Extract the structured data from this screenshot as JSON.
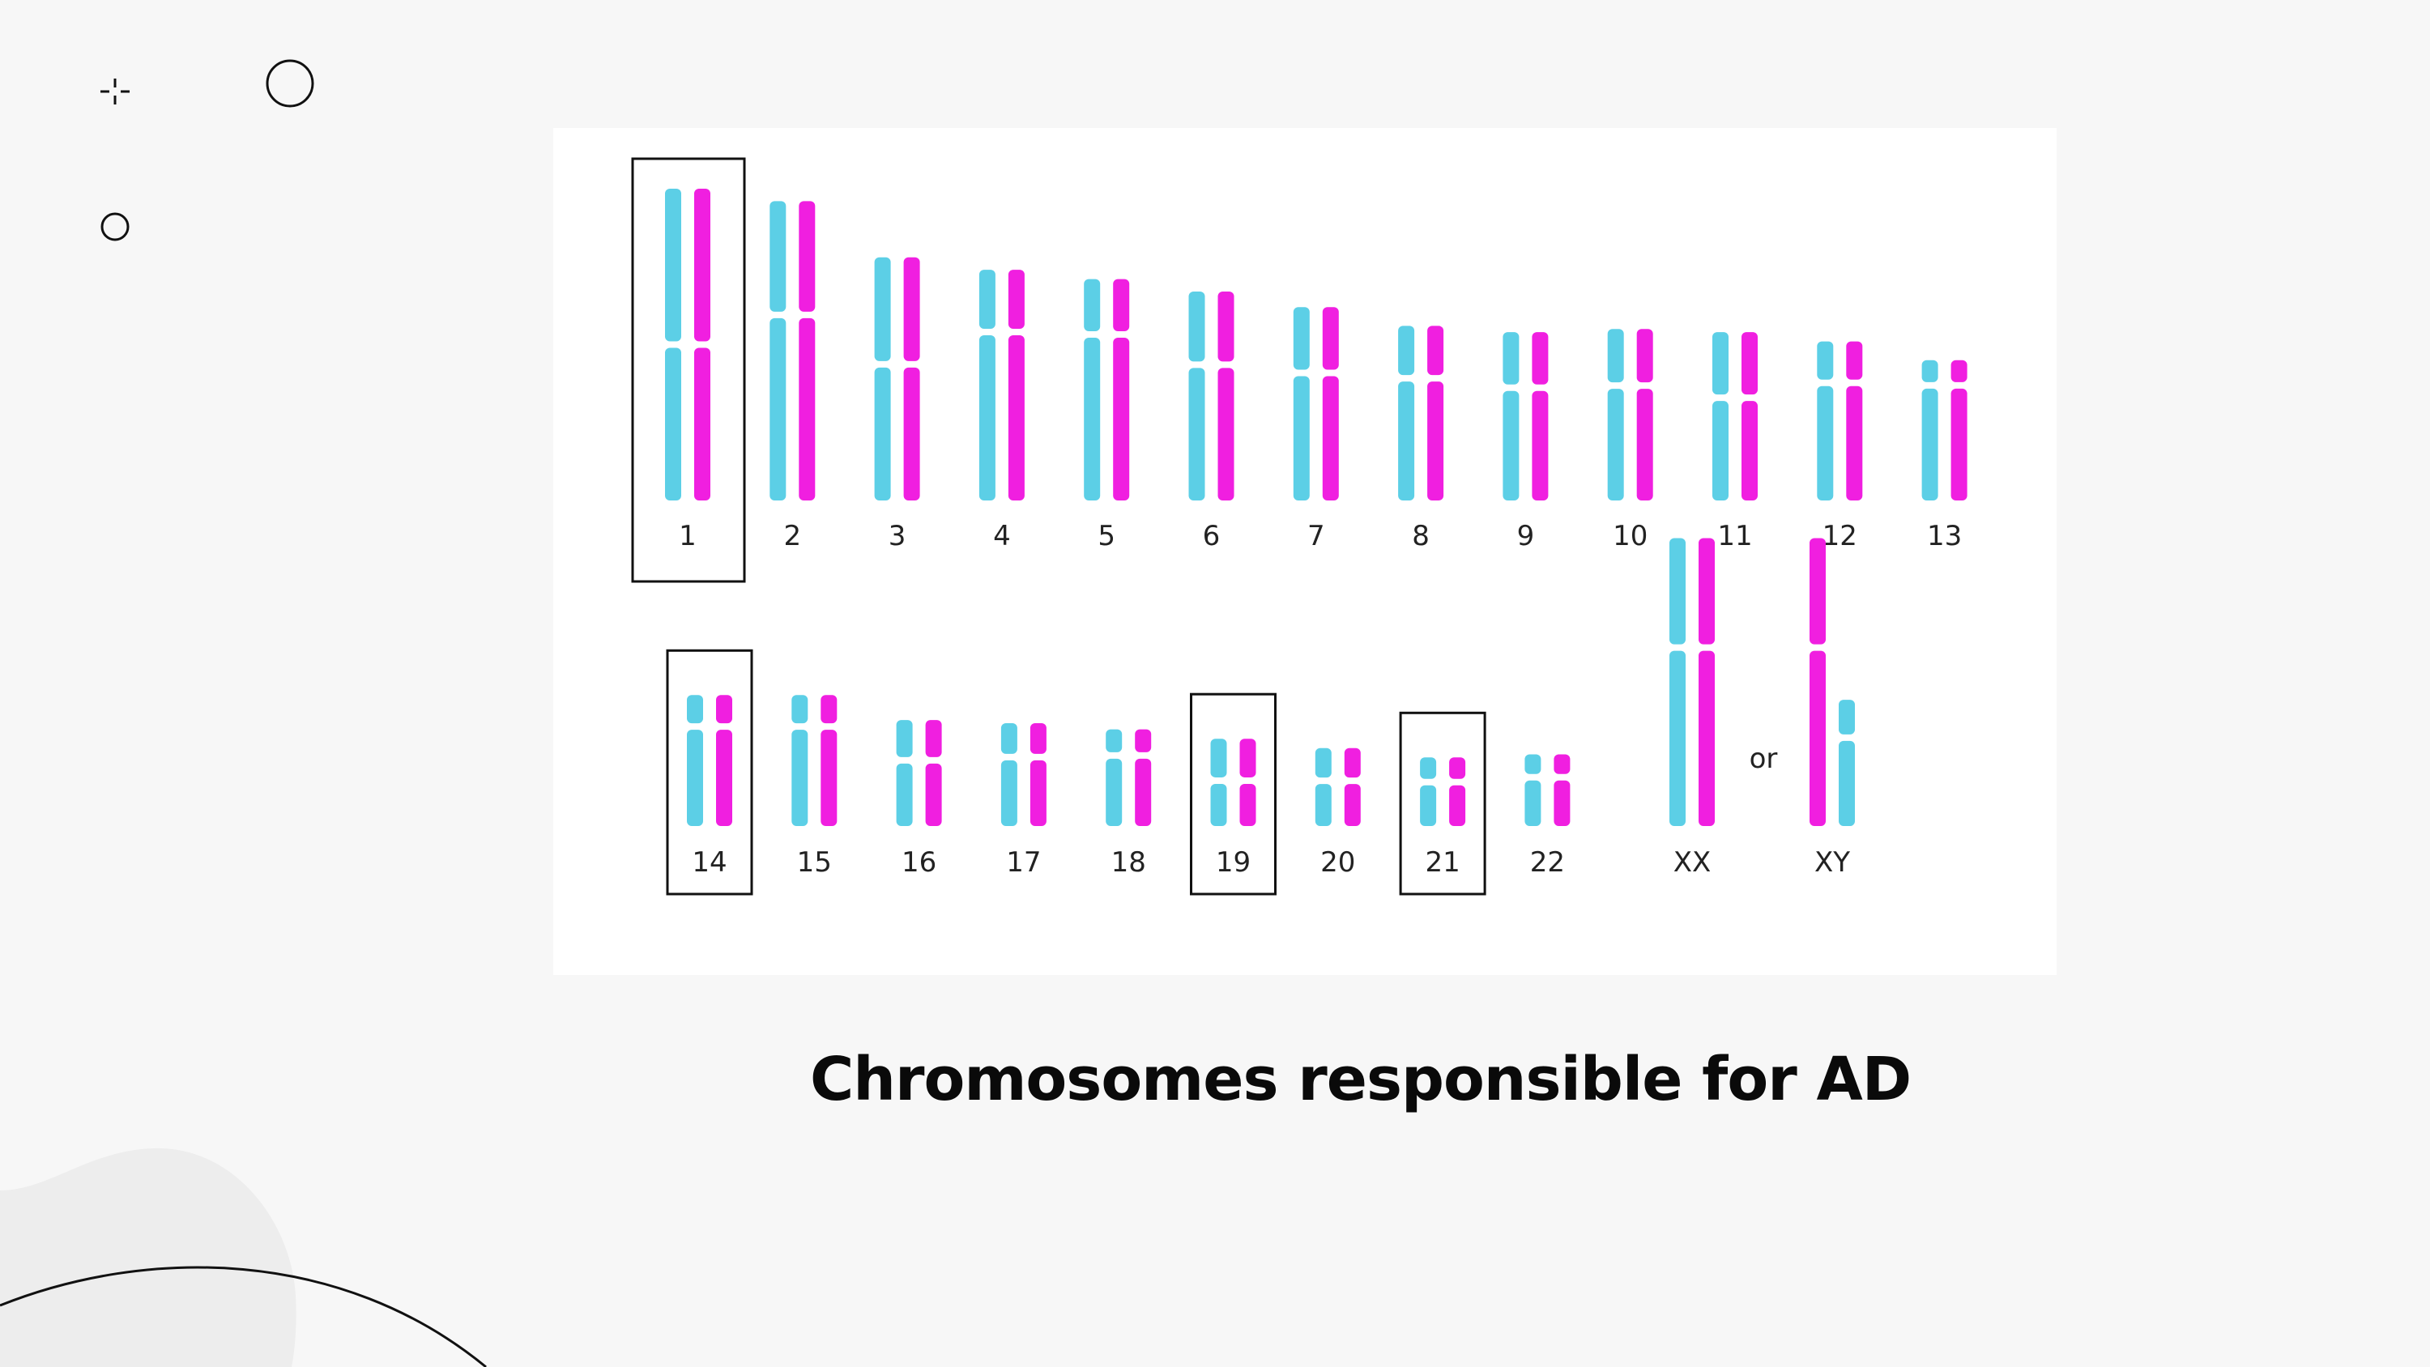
{
  "slide": {
    "caption": "Chromosomes responsible for AD"
  },
  "colors": {
    "copy_a": "#5ccfe6",
    "copy_b": "#f01fe0",
    "box": "#111111",
    "background": "#f7f7f7",
    "panel": "#ffffff"
  },
  "diagram": {
    "connector": "or",
    "autosomes_row1": [
      {
        "label": "1",
        "length": 1.0,
        "centromere": 0.5,
        "highlighted": true
      },
      {
        "label": "2",
        "length": 0.96,
        "centromere": 0.38,
        "highlighted": false
      },
      {
        "label": "3",
        "length": 0.78,
        "centromere": 0.44,
        "highlighted": false
      },
      {
        "label": "4",
        "length": 0.74,
        "centromere": 0.27,
        "highlighted": false
      },
      {
        "label": "5",
        "length": 0.71,
        "centromere": 0.25,
        "highlighted": false
      },
      {
        "label": "6",
        "length": 0.67,
        "centromere": 0.35,
        "highlighted": false
      },
      {
        "label": "7",
        "length": 0.62,
        "centromere": 0.34,
        "highlighted": false
      },
      {
        "label": "8",
        "length": 0.56,
        "centromere": 0.3,
        "highlighted": false
      },
      {
        "label": "9",
        "length": 0.54,
        "centromere": 0.33,
        "highlighted": false
      },
      {
        "label": "10",
        "length": 0.55,
        "centromere": 0.33,
        "highlighted": false
      },
      {
        "label": "11",
        "length": 0.54,
        "centromere": 0.39,
        "highlighted": false
      },
      {
        "label": "12",
        "length": 0.51,
        "centromere": 0.26,
        "highlighted": false
      },
      {
        "label": "13",
        "length": 0.45,
        "centromere": 0.18,
        "highlighted": false
      }
    ],
    "autosomes_row2": [
      {
        "label": "14",
        "length": 0.42,
        "centromere": 0.24,
        "highlighted": true
      },
      {
        "label": "15",
        "length": 0.42,
        "centromere": 0.24,
        "highlighted": false
      },
      {
        "label": "16",
        "length": 0.34,
        "centromere": 0.38,
        "highlighted": false
      },
      {
        "label": "17",
        "length": 0.33,
        "centromere": 0.33,
        "highlighted": false
      },
      {
        "label": "18",
        "length": 0.31,
        "centromere": 0.27,
        "highlighted": false
      },
      {
        "label": "19",
        "length": 0.28,
        "centromere": 0.48,
        "highlighted": true
      },
      {
        "label": "20",
        "length": 0.25,
        "centromere": 0.42,
        "highlighted": false
      },
      {
        "label": "21",
        "length": 0.22,
        "centromere": 0.36,
        "highlighted": true
      },
      {
        "label": "22",
        "length": 0.23,
        "centromere": 0.32,
        "highlighted": false
      }
    ],
    "sex_chromosomes": [
      {
        "label": "XX",
        "pair": [
          {
            "copy": "a",
            "length": 0.57,
            "centromere": 0.38
          },
          {
            "copy": "b",
            "length": 0.57,
            "centromere": 0.38
          }
        ]
      },
      {
        "label": "XY",
        "pair": [
          {
            "copy": "b",
            "length": 0.57,
            "centromere": 0.38
          },
          {
            "copy": "a",
            "length": 0.25,
            "centromere": 0.3
          }
        ]
      }
    ]
  }
}
